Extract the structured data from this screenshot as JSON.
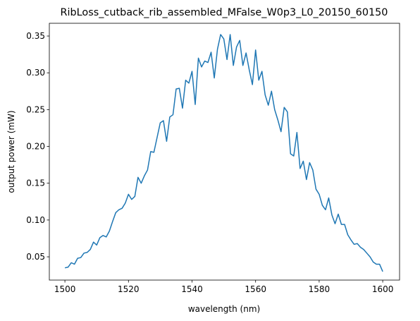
{
  "chart_data": {
    "type": "line",
    "title": "RibLoss_cutback_rib_assembled_MFalse_W0p3_L0_20150_60150",
    "x_label": "wavelength (nm)",
    "y_label": "output power (mW)",
    "x": [
      1500,
      1501,
      1502,
      1503,
      1504,
      1505,
      1506,
      1507,
      1508,
      1509,
      1510,
      1511,
      1512,
      1513,
      1514,
      1515,
      1516,
      1517,
      1518,
      1519,
      1520,
      1521,
      1522,
      1523,
      1524,
      1525,
      1526,
      1527,
      1528,
      1529,
      1530,
      1531,
      1532,
      1533,
      1534,
      1535,
      1536,
      1537,
      1538,
      1539,
      1540,
      1541,
      1542,
      1543,
      1544,
      1545,
      1546,
      1547,
      1548,
      1549,
      1550,
      1551,
      1552,
      1553,
      1554,
      1555,
      1556,
      1557,
      1558,
      1559,
      1560,
      1561,
      1562,
      1563,
      1564,
      1565,
      1566,
      1567,
      1568,
      1569,
      1570,
      1571,
      1572,
      1573,
      1574,
      1575,
      1576,
      1577,
      1578,
      1579,
      1580,
      1581,
      1582,
      1583,
      1584,
      1585,
      1586,
      1587,
      1588,
      1589,
      1590,
      1591,
      1592,
      1593,
      1594,
      1595,
      1596,
      1597,
      1598,
      1599,
      1600
    ],
    "series": [
      {
        "name": "output power",
        "color": "#1f77b4",
        "values": [
          0.035,
          0.036,
          0.042,
          0.04,
          0.048,
          0.049,
          0.055,
          0.056,
          0.06,
          0.07,
          0.066,
          0.076,
          0.079,
          0.077,
          0.085,
          0.098,
          0.11,
          0.114,
          0.116,
          0.123,
          0.135,
          0.128,
          0.132,
          0.158,
          0.15,
          0.16,
          0.168,
          0.193,
          0.192,
          0.212,
          0.232,
          0.235,
          0.207,
          0.24,
          0.243,
          0.278,
          0.279,
          0.252,
          0.29,
          0.286,
          0.302,
          0.257,
          0.32,
          0.308,
          0.316,
          0.314,
          0.328,
          0.293,
          0.332,
          0.352,
          0.346,
          0.318,
          0.352,
          0.31,
          0.335,
          0.344,
          0.31,
          0.327,
          0.304,
          0.284,
          0.331,
          0.29,
          0.302,
          0.27,
          0.256,
          0.275,
          0.25,
          0.236,
          0.22,
          0.253,
          0.247,
          0.19,
          0.187,
          0.219,
          0.17,
          0.18,
          0.155,
          0.178,
          0.168,
          0.142,
          0.135,
          0.12,
          0.114,
          0.13,
          0.107,
          0.095,
          0.108,
          0.094,
          0.094,
          0.08,
          0.073,
          0.067,
          0.068,
          0.063,
          0.06,
          0.055,
          0.05,
          0.043,
          0.04,
          0.04,
          0.03
        ]
      }
    ],
    "xlim": [
      1495.1,
      1605.3
    ],
    "ylim": [
      0.0184,
      0.3673
    ],
    "xticks": [
      1500,
      1520,
      1540,
      1560,
      1580,
      1600
    ],
    "yticks": [
      0.05,
      {
        "value": 0.1,
        "label": "0.10"
      },
      0.15,
      {
        "value": 0.2,
        "label": "0.20"
      },
      0.25,
      {
        "value": 0.3,
        "label": "0.30"
      },
      0.35
    ],
    "grid": false
  }
}
